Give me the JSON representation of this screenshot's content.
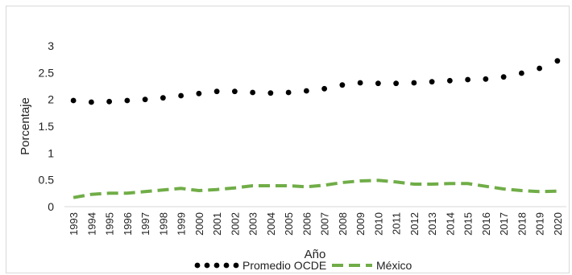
{
  "chart_data": {
    "type": "line",
    "title": "",
    "xlabel": "Año",
    "ylabel": "Porcentaje",
    "x": [
      "1993",
      "1994",
      "1995",
      "1996",
      "1997",
      "1998",
      "1999",
      "2000",
      "2001",
      "2002",
      "2003",
      "2004",
      "2005",
      "2006",
      "2007",
      "2008",
      "2009",
      "2010",
      "2011",
      "2012",
      "2013",
      "2014",
      "2015",
      "2016",
      "2017",
      "2018",
      "2019",
      "2020"
    ],
    "y_ticks": [
      "0",
      "0.5",
      "1",
      "1.5",
      "2",
      "2.5",
      "3"
    ],
    "ylim": [
      0,
      3
    ],
    "grid": false,
    "legend_position": "bottom",
    "series": [
      {
        "name": "Promedio OCDE",
        "style": "dotted",
        "color": "#000000",
        "values": [
          1.98,
          1.95,
          1.96,
          1.98,
          2.0,
          2.03,
          2.07,
          2.11,
          2.15,
          2.15,
          2.13,
          2.12,
          2.13,
          2.16,
          2.2,
          2.27,
          2.31,
          2.3,
          2.3,
          2.31,
          2.33,
          2.35,
          2.37,
          2.38,
          2.42,
          2.49,
          2.58,
          2.72
        ]
      },
      {
        "name": "México",
        "style": "dashed",
        "color": "#70ad47",
        "values": [
          0.17,
          0.23,
          0.25,
          0.25,
          0.28,
          0.31,
          0.34,
          0.3,
          0.32,
          0.35,
          0.39,
          0.39,
          0.39,
          0.37,
          0.4,
          0.45,
          0.48,
          0.49,
          0.46,
          0.42,
          0.42,
          0.43,
          0.43,
          0.38,
          0.33,
          0.3,
          0.28,
          0.29
        ]
      }
    ]
  }
}
